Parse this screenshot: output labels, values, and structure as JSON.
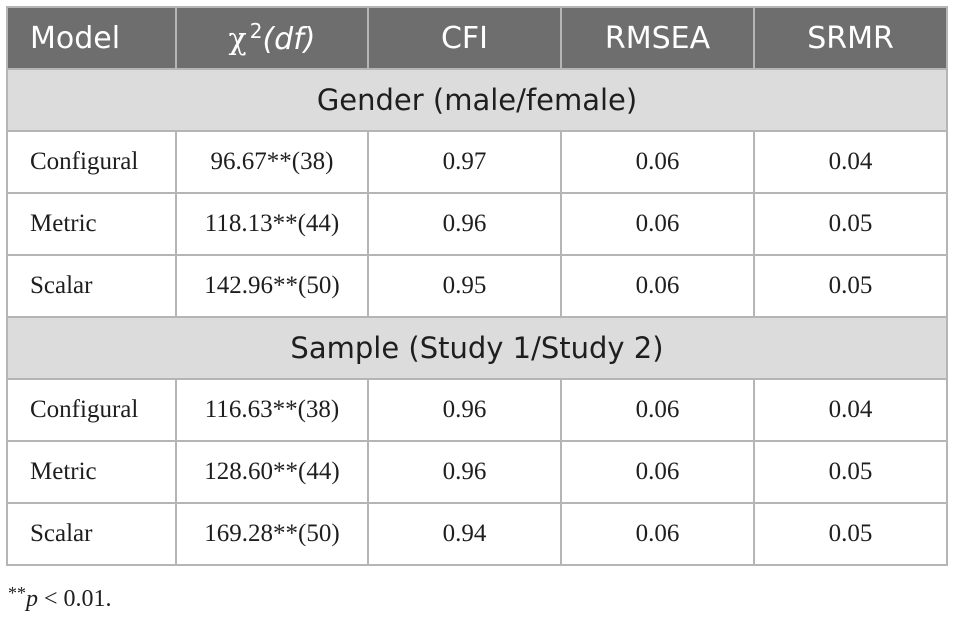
{
  "table": {
    "headers": {
      "model": "Model",
      "chi_symbol": "χ",
      "chi_superscript": "2",
      "chi_df": "(df)",
      "cfi": "CFI",
      "rmsea": "RMSEA",
      "srmr": "SRMR"
    },
    "groups": [
      {
        "title": "Gender (male/female)",
        "rows": [
          {
            "model": "Configural",
            "chi": "96.67**(38)",
            "cfi": "0.97",
            "rmsea": "0.06",
            "srmr": "0.04"
          },
          {
            "model": "Metric",
            "chi": "118.13**(44)",
            "cfi": "0.96",
            "rmsea": "0.06",
            "srmr": "0.05"
          },
          {
            "model": "Scalar",
            "chi": "142.96**(50)",
            "cfi": "0.95",
            "rmsea": "0.06",
            "srmr": "0.05"
          }
        ]
      },
      {
        "title": "Sample (Study 1/Study 2)",
        "rows": [
          {
            "model": "Configural",
            "chi": "116.63**(38)",
            "cfi": "0.96",
            "rmsea": "0.06",
            "srmr": "0.04"
          },
          {
            "model": "Metric",
            "chi": "128.60**(44)",
            "cfi": "0.96",
            "rmsea": "0.06",
            "srmr": "0.05"
          },
          {
            "model": "Scalar",
            "chi": "169.28**(50)",
            "cfi": "0.94",
            "rmsea": "0.06",
            "srmr": "0.05"
          }
        ]
      }
    ]
  },
  "footnote": {
    "stars": "**",
    "p": "p",
    "rest": " < 0.01."
  }
}
